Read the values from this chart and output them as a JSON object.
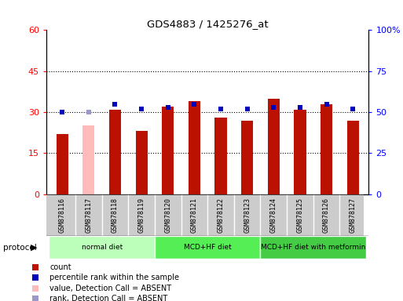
{
  "title": "GDS4883 / 1425276_at",
  "samples": [
    "GSM878116",
    "GSM878117",
    "GSM878118",
    "GSM878119",
    "GSM878120",
    "GSM878121",
    "GSM878122",
    "GSM878123",
    "GSM878124",
    "GSM878125",
    "GSM878126",
    "GSM878127"
  ],
  "bar_values": [
    22,
    25,
    31,
    23,
    32,
    34,
    28,
    27,
    35,
    31,
    33,
    27
  ],
  "bar_absent": [
    false,
    true,
    false,
    false,
    false,
    false,
    false,
    false,
    false,
    false,
    false,
    false
  ],
  "percentile_values": [
    50,
    50,
    55,
    52,
    53,
    55,
    52,
    52,
    53,
    53,
    55,
    52
  ],
  "percentile_absent": [
    false,
    true,
    false,
    false,
    false,
    false,
    false,
    false,
    false,
    false,
    false,
    false
  ],
  "left_ylim": [
    0,
    60
  ],
  "right_ylim": [
    0,
    100
  ],
  "left_yticks": [
    0,
    15,
    30,
    45,
    60
  ],
  "right_yticks": [
    0,
    25,
    50,
    75,
    100
  ],
  "right_yticklabels": [
    "0",
    "25",
    "50",
    "75",
    "100%"
  ],
  "groups": [
    {
      "label": "normal diet",
      "start": 0,
      "end": 4,
      "color": "#bbffbb"
    },
    {
      "label": "MCD+HF diet",
      "start": 4,
      "end": 8,
      "color": "#55ee55"
    },
    {
      "label": "MCD+HF diet with metformin",
      "start": 8,
      "end": 12,
      "color": "#44cc44"
    }
  ],
  "bar_color_normal": "#bb1100",
  "bar_color_absent": "#ffbbbb",
  "marker_color_normal": "#0000bb",
  "marker_color_absent": "#9999cc",
  "dotted_yticks": [
    15,
    30,
    45
  ],
  "tick_label_bg": "#cccccc",
  "bar_width": 0.45
}
